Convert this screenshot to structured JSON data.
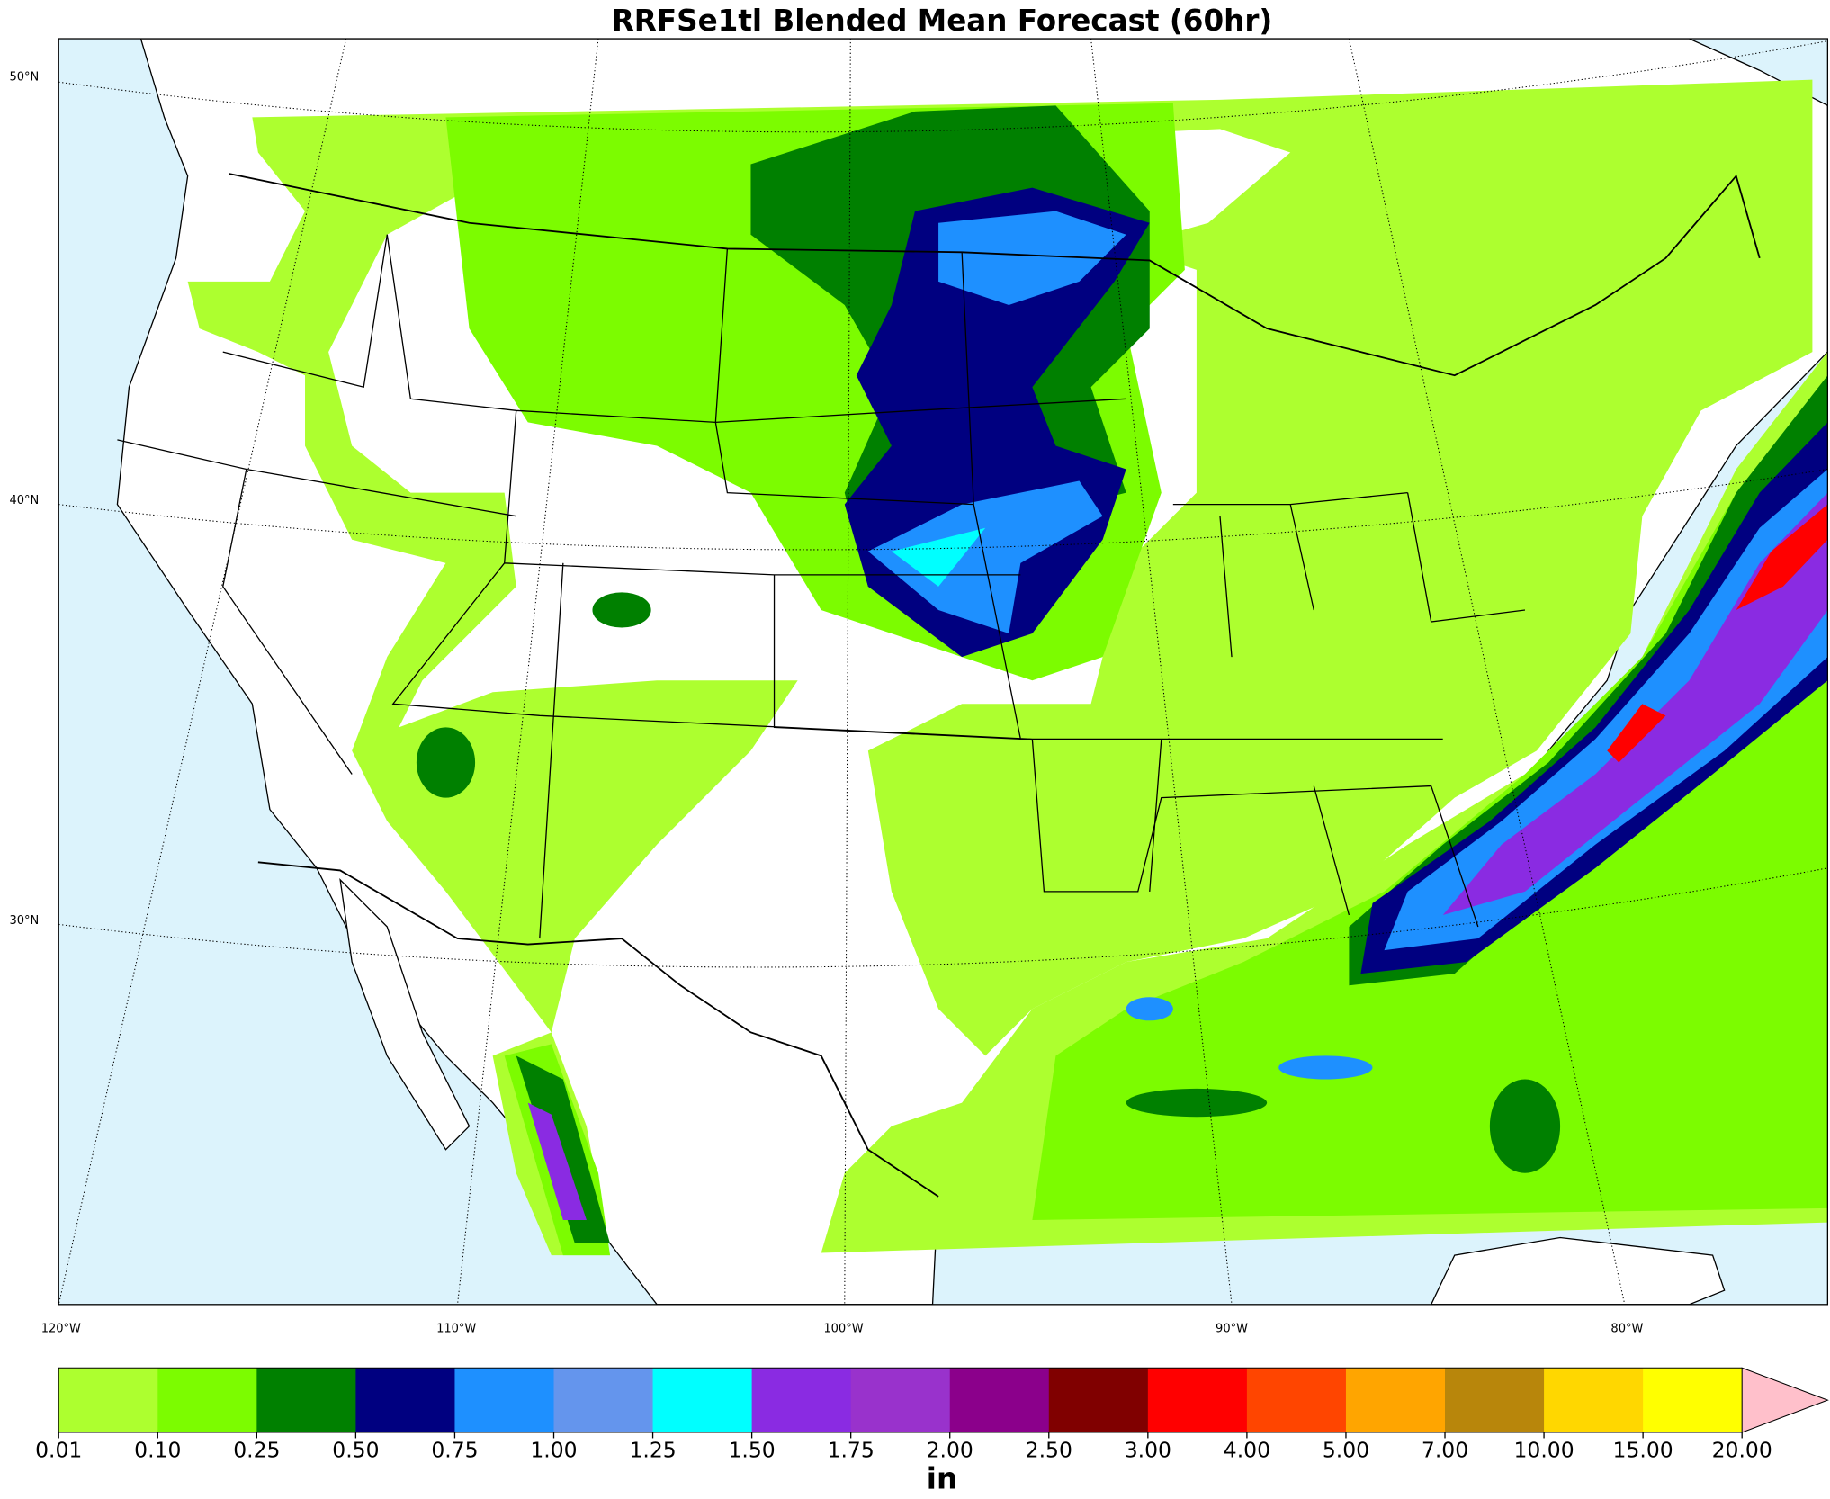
{
  "title": "RRFSe1tl Blended Mean Forecast (60hr)",
  "map": {
    "lat_labels": [
      "50°N",
      "40°N",
      "30°N"
    ],
    "lon_labels": [
      "120°W",
      "110°W",
      "100°W",
      "90°W",
      "80°W"
    ]
  },
  "colorbar": {
    "unit": "in",
    "ticks": [
      {
        "value": 0.01,
        "label": "0.01"
      },
      {
        "value": 0.1,
        "label": "0.10"
      },
      {
        "value": 0.25,
        "label": "0.25"
      },
      {
        "value": 0.5,
        "label": "0.50"
      },
      {
        "value": 0.75,
        "label": "0.75"
      },
      {
        "value": 1,
        "label": "1.00"
      },
      {
        "value": 1.25,
        "label": "1.25"
      },
      {
        "value": 1.5,
        "label": "1.50"
      },
      {
        "value": 1.75,
        "label": "1.75"
      },
      {
        "value": 2,
        "label": "2.00"
      },
      {
        "value": 2.5,
        "label": "2.50"
      },
      {
        "value": 3,
        "label": "3.00"
      },
      {
        "value": 4,
        "label": "4.00"
      },
      {
        "value": 5,
        "label": "5.00"
      },
      {
        "value": 7,
        "label": "7.00"
      },
      {
        "value": 10,
        "label": "10.00"
      },
      {
        "value": 15,
        "label": "15.00"
      },
      {
        "value": 20,
        "label": "20.00"
      }
    ],
    "colors": [
      "#adff2f",
      "#7cfc00",
      "#008000",
      "#000080",
      "#1e90ff",
      "#6495ed",
      "#00ffff",
      "#8a2be2",
      "#9932cc",
      "#8b008b",
      "#800000",
      "#ff0000",
      "#ff4500",
      "#ffa500",
      "#b8860b",
      "#ffd700",
      "#ffff00"
    ],
    "extend_color": "#ffc0cb"
  }
}
